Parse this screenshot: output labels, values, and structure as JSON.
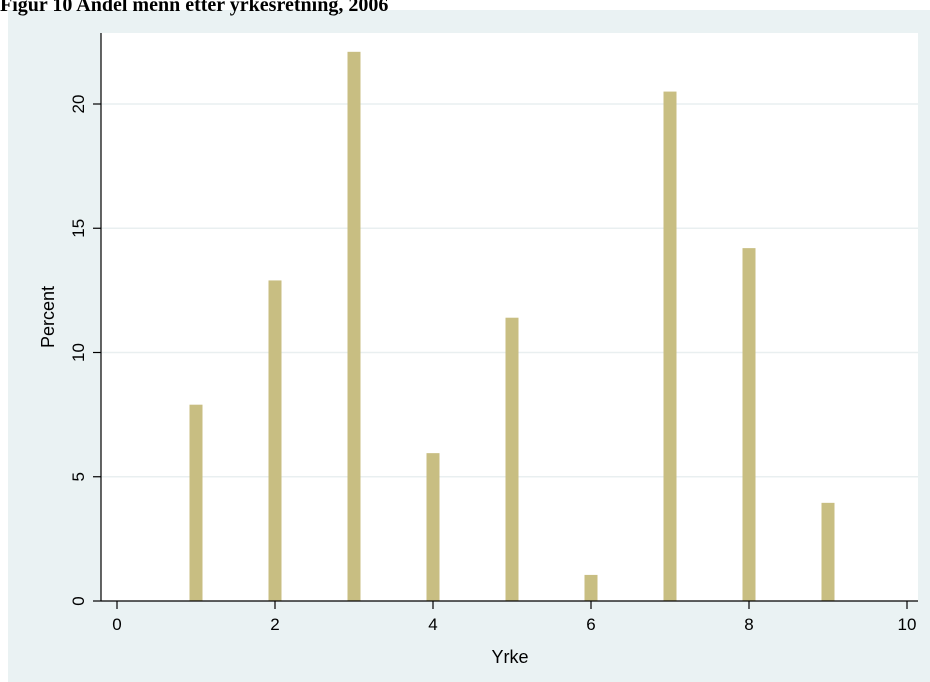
{
  "figure": {
    "title": "Figur 10 Andel menn etter yrkesretning, 2006"
  },
  "chart_data": {
    "type": "bar",
    "title": "Figur 10 Andel menn etter yrkesretning, 2006",
    "xlabel": "Yrke",
    "ylabel": "Percent",
    "x": [
      1,
      2,
      3,
      4,
      5,
      6,
      7,
      8,
      9
    ],
    "values": [
      7.9,
      12.9,
      22.1,
      5.95,
      11.4,
      1.05,
      20.5,
      14.2,
      3.95
    ],
    "xlim": [
      0,
      10
    ],
    "ylim": [
      0,
      22.5
    ],
    "xticks": [
      "0",
      "2",
      "4",
      "6",
      "8",
      "10"
    ],
    "yticks": [
      "0",
      "5",
      "10",
      "15",
      "20"
    ],
    "grid": true,
    "bar_color": "#c8be82",
    "background_color": "#eaf2f3",
    "plot_color": "#ffffff"
  }
}
